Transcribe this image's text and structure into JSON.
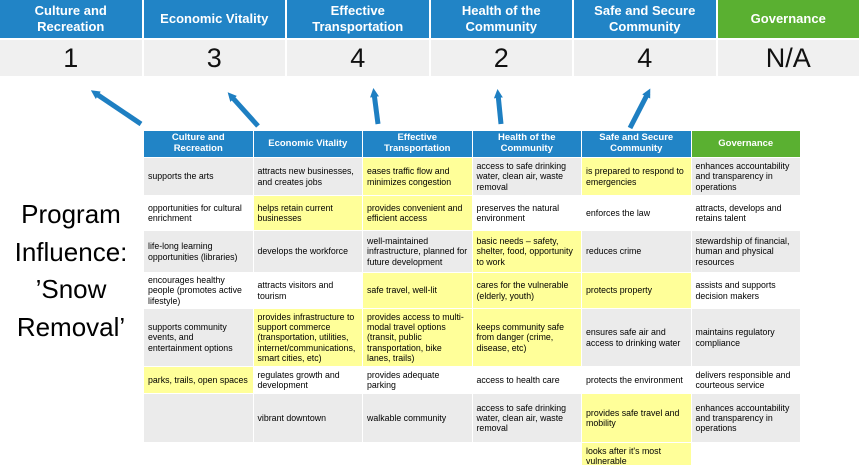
{
  "slide_title": "Program Influence: ’Snow Removal’",
  "colors": {
    "header_blue": "#2184C6",
    "header_green": "#5AB031",
    "score_bg": "#F0F0F0",
    "row_gray": "#EBEBEB",
    "highlight_yellow": "#FFFF99",
    "arrow_blue": "#1E7FC2"
  },
  "summary": {
    "columns": [
      {
        "label": "Culture and Recreation",
        "score": "1",
        "color": "blue"
      },
      {
        "label": "Economic Vitality",
        "score": "3",
        "color": "blue"
      },
      {
        "label": "Effective Transportation",
        "score": "4",
        "color": "blue"
      },
      {
        "label": "Health of the Community",
        "score": "2",
        "color": "blue"
      },
      {
        "label": "Safe and Secure Community",
        "score": "4",
        "color": "blue"
      },
      {
        "label": "Governance",
        "score": "N/A",
        "color": "green"
      }
    ]
  },
  "matrix": {
    "headers": [
      {
        "label": "Culture and Recreation",
        "color": "blue"
      },
      {
        "label": "Economic Vitality",
        "color": "blue"
      },
      {
        "label": "Effective Transportation",
        "color": "blue"
      },
      {
        "label": "Health of the Community",
        "color": "blue"
      },
      {
        "label": "Safe and Secure Community",
        "color": "blue"
      },
      {
        "label": "Governance",
        "color": "green"
      }
    ],
    "rows": [
      {
        "base": "gray",
        "cells": [
          {
            "text": "supports the arts",
            "highlight": false
          },
          {
            "text": "attracts new businesses, and creates jobs",
            "highlight": false
          },
          {
            "text": "eases traffic flow and minimizes congestion",
            "highlight": true
          },
          {
            "text": "access to safe drinking water, clean air, waste removal",
            "highlight": false
          },
          {
            "text": "is prepared to respond to emergencies",
            "highlight": true
          },
          {
            "text": "enhances accountability and transparency in operations",
            "highlight": false
          }
        ]
      },
      {
        "base": "white",
        "cells": [
          {
            "text": "opportunities for cultural enrichment",
            "highlight": false
          },
          {
            "text": "helps retain current businesses",
            "highlight": true
          },
          {
            "text": "provides convenient and efficient access",
            "highlight": true
          },
          {
            "text": "preserves the natural environment",
            "highlight": false
          },
          {
            "text": "enforces the law",
            "highlight": false
          },
          {
            "text": "attracts, develops and retains talent",
            "highlight": false
          }
        ]
      },
      {
        "base": "gray",
        "cells": [
          {
            "text": "life-long learning opportunities (libraries)",
            "highlight": false
          },
          {
            "text": "develops the workforce",
            "highlight": false
          },
          {
            "text": "well-maintained infrastructure, planned for future development",
            "highlight": false
          },
          {
            "text": "basic needs – safety, shelter, food, opportunity to work",
            "highlight": true
          },
          {
            "text": "reduces crime",
            "highlight": false
          },
          {
            "text": "stewardship of financial, human and physical resources",
            "highlight": false
          }
        ]
      },
      {
        "base": "white",
        "cells": [
          {
            "text": "encourages healthy people (promotes active lifestyle)",
            "highlight": false
          },
          {
            "text": "attracts visitors and tourism",
            "highlight": false
          },
          {
            "text": "safe travel, well-lit",
            "highlight": true
          },
          {
            "text": "cares for the vulnerable (elderly, youth)",
            "highlight": true
          },
          {
            "text": "protects property",
            "highlight": true
          },
          {
            "text": "assists and supports decision makers",
            "highlight": false
          }
        ]
      },
      {
        "base": "gray",
        "cells": [
          {
            "text": "supports community events, and entertainment options",
            "highlight": false
          },
          {
            "text": "provides infrastructure to support commerce (transportation, utilities, internet/communications, smart cities, etc)",
            "highlight": true
          },
          {
            "text": "provides access to multi-modal travel options (transit, public transportation, bike lanes, trails)",
            "highlight": true
          },
          {
            "text": "keeps community safe from danger (crime, disease, etc)",
            "highlight": true
          },
          {
            "text": "ensures safe air and access to drinking water",
            "highlight": false
          },
          {
            "text": "maintains regulatory compliance",
            "highlight": false
          }
        ]
      },
      {
        "base": "white",
        "cells": [
          {
            "text": "parks, trails, open spaces",
            "highlight": true
          },
          {
            "text": "regulates growth and development",
            "highlight": false
          },
          {
            "text": "provides adequate parking",
            "highlight": false
          },
          {
            "text": "access to health care",
            "highlight": false
          },
          {
            "text": "protects the environment",
            "highlight": false
          },
          {
            "text": "delivers responsible and courteous service",
            "highlight": false
          }
        ]
      },
      {
        "base": "gray",
        "cells": [
          {
            "text": "",
            "highlight": false
          },
          {
            "text": "vibrant downtown",
            "highlight": false
          },
          {
            "text": "walkable community",
            "highlight": false
          },
          {
            "text": "access to safe drinking water, clean air, waste removal",
            "highlight": false
          },
          {
            "text": "provides safe travel and mobility",
            "highlight": true
          },
          {
            "text": "enhances accountability and transparency in operations",
            "highlight": false
          }
        ]
      },
      {
        "base": "white",
        "cells": [
          {
            "text": "",
            "highlight": false
          },
          {
            "text": "",
            "highlight": false
          },
          {
            "text": "",
            "highlight": false
          },
          {
            "text": "",
            "highlight": false
          },
          {
            "text": "looks after it's most vulnerable",
            "highlight": true
          },
          {
            "text": "",
            "highlight": false
          }
        ]
      }
    ]
  }
}
